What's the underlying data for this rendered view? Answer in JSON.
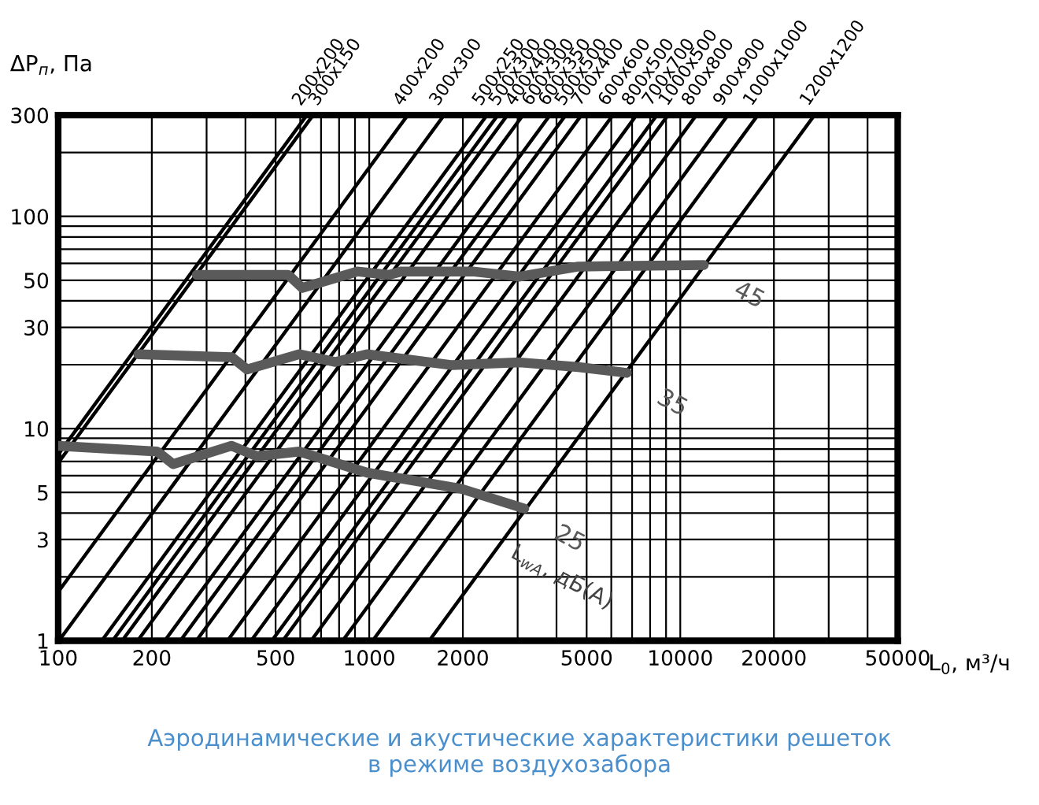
{
  "chart_data": {
    "type": "line",
    "title": "Аэродинамические и акустические характеристики решеток\nв режиме воздухозабора",
    "xlabel": "L$_{0}$, м³/ч",
    "ylabel": "ΔP$_{п}$, Па",
    "log": "xy",
    "grid": true,
    "legend": false,
    "xlim": [
      100,
      50000
    ],
    "ylim": [
      1,
      300
    ],
    "xticks": [
      100,
      200,
      {
        "value": 300,
        "label": null
      },
      {
        "value": 400,
        "label": null
      },
      500,
      {
        "value": 600,
        "label": null
      },
      {
        "value": 700,
        "label": null
      },
      {
        "value": 800,
        "label": null
      },
      {
        "value": 900,
        "label": null
      },
      1000,
      2000,
      {
        "value": 3000,
        "label": null
      },
      {
        "value": 4000,
        "label": null
      },
      5000,
      {
        "value": 6000,
        "label": null
      },
      {
        "value": 7000,
        "label": null
      },
      {
        "value": 8000,
        "label": null
      },
      {
        "value": 9000,
        "label": null
      },
      10000,
      20000,
      {
        "value": 30000,
        "label": null
      },
      {
        "value": 40000,
        "label": null
      },
      50000
    ],
    "yticks": [
      1,
      {
        "value": 2,
        "label": null
      },
      3,
      {
        "value": 4,
        "label": null
      },
      5,
      {
        "value": 6,
        "label": null
      },
      {
        "value": 7,
        "label": null
      },
      {
        "value": 8,
        "label": null
      },
      {
        "value": 9,
        "label": null
      },
      10,
      {
        "value": 20,
        "label": null
      },
      30,
      {
        "value": 40,
        "label": null
      },
      50,
      {
        "value": 60,
        "label": null
      },
      {
        "value": 70,
        "label": null
      },
      {
        "value": 80,
        "label": null
      },
      {
        "value": 90,
        "label": null
      },
      100,
      {
        "value": 200,
        "label": null
      },
      300
    ],
    "series": [
      {
        "name": "200x200",
        "color": "#000000",
        "x": [
          100,
          630
        ],
        "values": [
          7.56,
          300
        ]
      },
      {
        "name": "300x150",
        "color": "#000000",
        "x": [
          100,
          660
        ],
        "values": [
          6.89,
          300
        ]
      },
      {
        "name": "400x200",
        "color": "#000000",
        "x": [
          100,
          1330
        ],
        "values": [
          1.7,
          300
        ]
      },
      {
        "name": "300x300",
        "color": "#000000",
        "x": [
          100.5,
          1740
        ],
        "values": [
          1,
          300
        ]
      },
      {
        "name": "500x250",
        "color": "#000000",
        "x": [
          138,
          2390
        ],
        "values": [
          1,
          300
        ]
      },
      {
        "name": "500x300",
        "color": "#000000",
        "x": [
          149.5,
          2590
        ],
        "values": [
          1,
          300
        ]
      },
      {
        "name": "400x400",
        "color": "#000000",
        "x": [
          160.5,
          2780
        ],
        "values": [
          1,
          300
        ]
      },
      {
        "name": "600x300",
        "color": "#000000",
        "x": [
          180,
          3120
        ],
        "values": [
          1,
          300
        ]
      },
      {
        "name": "600x350",
        "color": "#000000",
        "x": [
          220,
          3810
        ],
        "values": [
          1,
          300
        ]
      },
      {
        "name": "500x500",
        "color": "#000000",
        "x": [
          247,
          4280
        ],
        "values": [
          1,
          300
        ]
      },
      {
        "name": "700x400",
        "color": "#000000",
        "x": [
          278,
          4810
        ],
        "values": [
          1,
          300
        ]
      },
      {
        "name": "600x600",
        "color": "#000000",
        "x": [
          350,
          6070
        ],
        "values": [
          1,
          300
        ]
      },
      {
        "name": "800x500",
        "color": "#000000",
        "x": [
          417,
          7230
        ],
        "values": [
          1,
          300
        ]
      },
      {
        "name": "700x700",
        "color": "#000000",
        "x": [
          486,
          8410
        ],
        "values": [
          1,
          300
        ]
      },
      {
        "name": "1000x500",
        "color": "#000000",
        "x": [
          527,
          9130
        ],
        "values": [
          1,
          300
        ]
      },
      {
        "name": "800x800",
        "color": "#000000",
        "x": [
          650,
          11260
        ],
        "values": [
          1,
          300
        ]
      },
      {
        "name": "900x900",
        "color": "#000000",
        "x": [
          821,
          14220
        ],
        "values": [
          1,
          300
        ]
      },
      {
        "name": "1000x1000",
        "color": "#000000",
        "x": [
          1025,
          17750
        ],
        "values": [
          1,
          300
        ]
      },
      {
        "name": "1200x1200",
        "color": "#000000",
        "x": [
          1559,
          27000
        ],
        "values": [
          1,
          300
        ]
      },
      {
        "name": "45",
        "color": "#5a5a5a",
        "x": [
          279,
          549,
          609,
          915,
          1156,
          1270,
          2150,
          3050,
          4700,
          11900
        ],
        "values": [
          53,
          53,
          46,
          55,
          53,
          55,
          55,
          52,
          58,
          59
        ]
      },
      {
        "name": "35",
        "color": "#5a5a5a",
        "x": [
          181,
          361,
          405,
          595,
          779,
          983,
          1850,
          3050,
          4700,
          6730
        ],
        "values": [
          22.4,
          21.7,
          19,
          22.4,
          20.6,
          22.4,
          19.9,
          20.5,
          19.5,
          18.3
        ]
      },
      {
        "name": "25",
        "color": "#5a5a5a",
        "x": [
          100,
          208,
          234,
          361,
          435,
          595,
          983,
          1980,
          3150
        ],
        "values": [
          8.3,
          7.8,
          6.8,
          8.3,
          7.4,
          7.8,
          6.2,
          5.2,
          4.2
        ]
      }
    ],
    "annotations": [
      "L$_{wA}$, дБ(А)"
    ]
  }
}
